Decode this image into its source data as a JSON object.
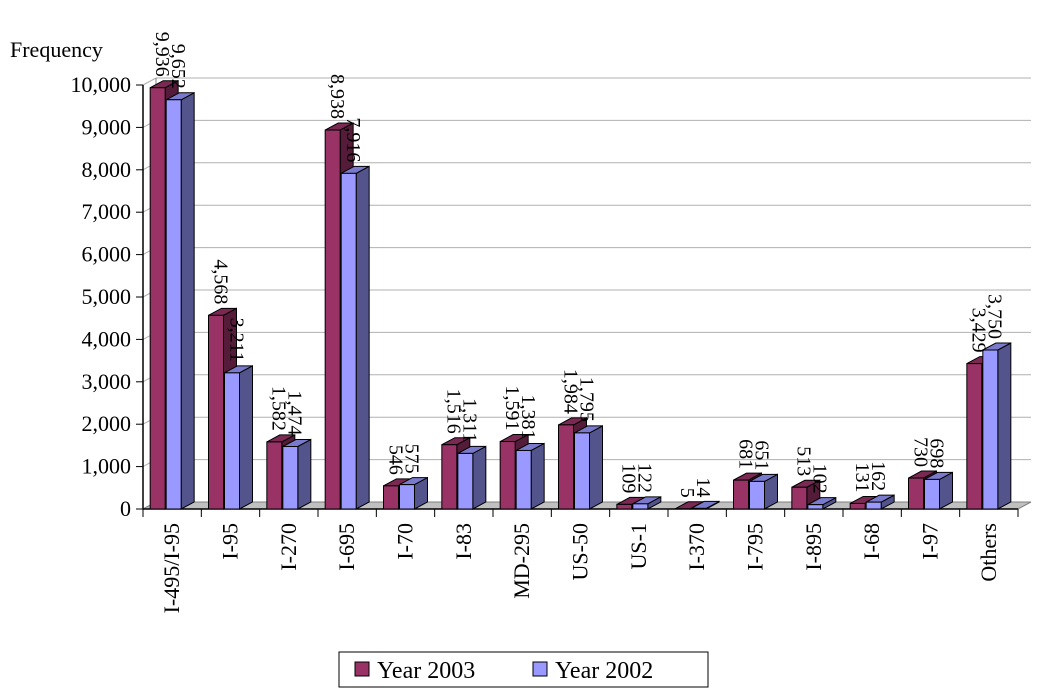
{
  "chart_data": {
    "type": "bar",
    "title": "",
    "xlabel": "",
    "ylabel": "Frequency",
    "ylim": [
      0,
      10000
    ],
    "yticks": [
      "0",
      "1,000",
      "2,000",
      "3,000",
      "4,000",
      "5,000",
      "6,000",
      "7,000",
      "8,000",
      "9,000",
      "10,000"
    ],
    "grid": true,
    "legend": "bottom",
    "categories": [
      "I-495/I-95",
      "I-95",
      "I-270",
      "I-695",
      "I-70",
      "I-83",
      "MD-295",
      "US-50",
      "US-1",
      "I-370",
      "I-795",
      "I-895",
      "I-68",
      "I-97",
      "Others"
    ],
    "series": [
      {
        "name": "Year 2003",
        "color": "#993366",
        "values": [
          9936,
          4568,
          1582,
          8938,
          546,
          1516,
          1591,
          1984,
          109,
          5,
          681,
          513,
          131,
          730,
          3429
        ],
        "labels": [
          "9,936",
          "4,568",
          "1,582",
          "8,938",
          "546",
          "1,516",
          "1,591",
          "1,984",
          "109",
          "5",
          "681",
          "513",
          "131",
          "730",
          "3,429"
        ]
      },
      {
        "name": "Year 2002",
        "color": "#9999ff",
        "values": [
          9652,
          3211,
          1474,
          7916,
          575,
          1311,
          1381,
          1795,
          122,
          14,
          651,
          102,
          162,
          698,
          3750
        ],
        "labels": [
          "9,652",
          "3,211",
          "1,474",
          "7,916",
          "575",
          "1,311",
          "1,381",
          "1,795",
          "122",
          "14",
          "651",
          "102",
          "162",
          "698",
          "3,750"
        ]
      }
    ]
  }
}
